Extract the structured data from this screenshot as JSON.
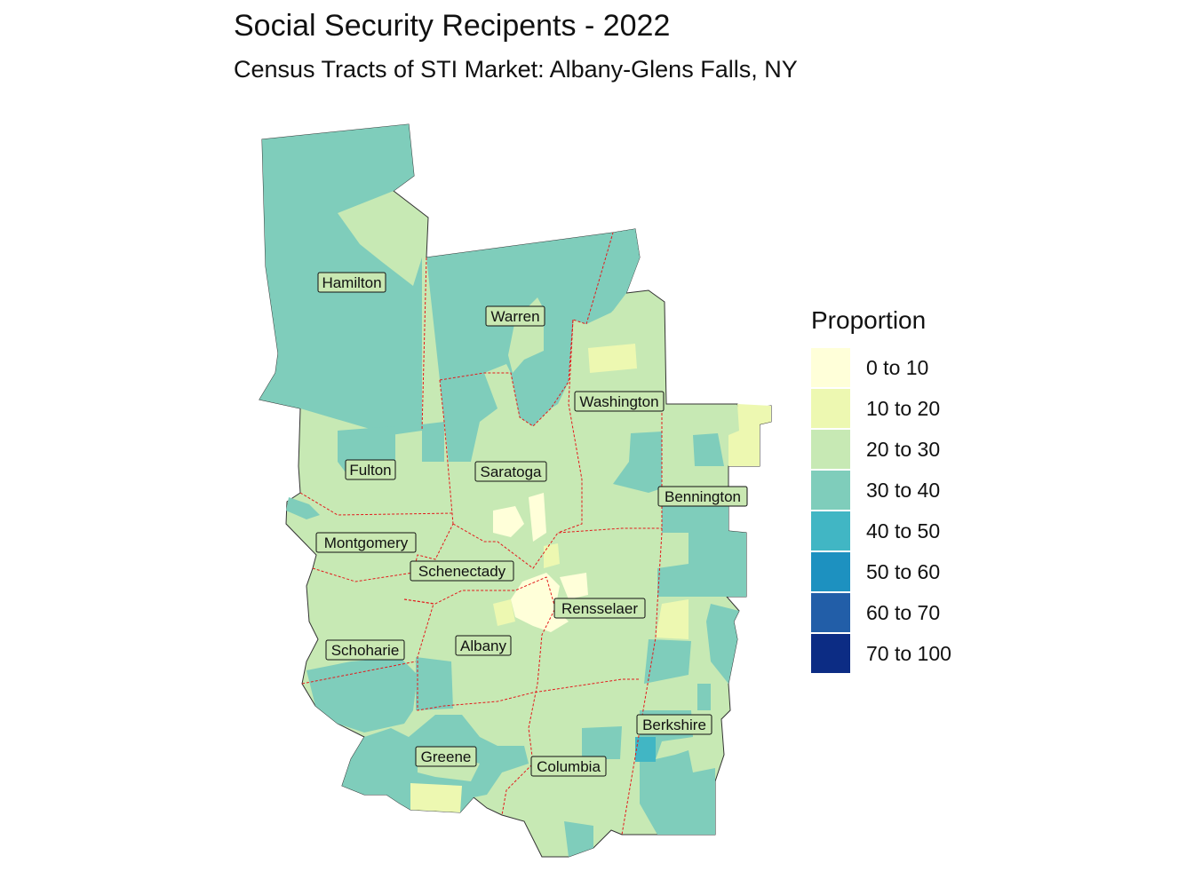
{
  "title": "Social Security Recipents - 2022",
  "subtitle": "Census Tracts of STI Market: Albany-Glens Falls, NY",
  "legend": {
    "title": "Proportion",
    "items": [
      {
        "label": "0 to 10",
        "color": "#ffffd9"
      },
      {
        "label": "10 to 20",
        "color": "#edf8b1"
      },
      {
        "label": "20 to 30",
        "color": "#c7e9b4"
      },
      {
        "label": "30 to 40",
        "color": "#7fcdbb"
      },
      {
        "label": "40 to 50",
        "color": "#41b6c4"
      },
      {
        "label": "50 to 60",
        "color": "#1d91c0"
      },
      {
        "label": "60 to 70",
        "color": "#225ea8"
      },
      {
        "label": "70 to 100",
        "color": "#0c2c84"
      }
    ]
  },
  "counties": [
    {
      "name": "Hamilton",
      "class": "30 to 40"
    },
    {
      "name": "Warren",
      "class": "30 to 40"
    },
    {
      "name": "Washington",
      "class": "20 to 30"
    },
    {
      "name": "Fulton",
      "class": "20 to 30"
    },
    {
      "name": "Saratoga",
      "class": "20 to 30"
    },
    {
      "name": "Bennington",
      "class": "30 to 40"
    },
    {
      "name": "Montgomery",
      "class": "20 to 30"
    },
    {
      "name": "Schenectady",
      "class": "20 to 30"
    },
    {
      "name": "Rensselaer",
      "class": "20 to 30"
    },
    {
      "name": "Albany",
      "class": "20 to 30"
    },
    {
      "name": "Schoharie",
      "class": "20 to 30"
    },
    {
      "name": "Berkshire",
      "class": "30 to 40"
    },
    {
      "name": "Greene",
      "class": "30 to 40"
    },
    {
      "name": "Columbia",
      "class": "20 to 30"
    }
  ]
}
